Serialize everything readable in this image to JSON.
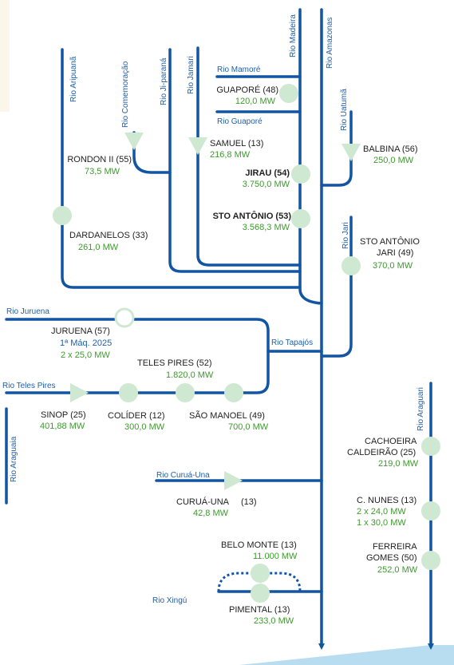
{
  "colors": {
    "river": "#1155a3",
    "plant": "#cfe8d2",
    "name_text": "#222222",
    "power_text": "#3d9a2e",
    "river_label": "#1f5fa8",
    "beige_panel": "#faf7ea",
    "sea": "#b8dcf0"
  },
  "rivers": {
    "madeira": "Rio Madeira",
    "amazonas": "Rio Amazonas",
    "aripuana": "Rio Aripuanã",
    "comemoracao": "Rio Comemoração",
    "jiparana": "Rio Ji-paraná",
    "jamari": "Rio Jamari",
    "mamore": "Rio Mamoré",
    "guapore": "Rio Guaporé",
    "uatuma": "Rio Uatumã",
    "jari": "Rio Jari",
    "juruena": "Rio Juruena",
    "tapajos": "Rio Tapajós",
    "teles_pires": "Rio Teles Pires",
    "araguaia": "Rio Araguaia",
    "araguari": "Rio Araguari",
    "curua_una": "Rio Curuá-Una",
    "xingu": "Rio Xingú"
  },
  "plants": {
    "guapore": {
      "name": "GUAPORÉ (48)",
      "power": "120,0 MW"
    },
    "rondon": {
      "name": "RONDON II (55)",
      "power": "73,5 MW"
    },
    "samuel": {
      "name": "SAMUEL (13)",
      "power": "216,8 MW"
    },
    "jirau": {
      "name": "JIRAU (54)",
      "power": "3.750,0 MW"
    },
    "sto_antonio": {
      "name": "STO ANTÔNIO (53)",
      "power": "3.568,3 MW"
    },
    "dardanelos": {
      "name": "DARDANELOS (33)",
      "power": "261,0 MW"
    },
    "balbina": {
      "name": "BALBINA (56)",
      "power": "250,0 MW"
    },
    "sto_antonio_jari": {
      "name_1": "STO ANTÔNIO",
      "name_2": "JARI (49)",
      "power": "370,0 MW"
    },
    "juruena": {
      "name": "JURUENA (57)",
      "note": "1ª Máq. 2025",
      "power": "2 x 25,0 MW"
    },
    "teles_pires": {
      "name": "TELES PIRES (52)",
      "power": "1.820,0 MW"
    },
    "sinop": {
      "name": "SINOP (25)",
      "power": "401,88 MW"
    },
    "colider": {
      "name": "COLÍDER (12)",
      "power": "300,0 MW"
    },
    "sao_manoel": {
      "name": "SÃO MANOEL (49)",
      "power": "700,0 MW"
    },
    "cachoeira": {
      "name_1": "CACHOEIRA",
      "name_2": "CALDEIRÃO (25)",
      "power": "219,0 MW"
    },
    "curua_una": {
      "name": "CURUÁ-UNA",
      "num": "(13)",
      "power": "42,8 MW"
    },
    "c_nunes": {
      "name": "C. NUNES (13)",
      "power_1": "2 x 24,0 MW",
      "power_2": "1 x 30,0 MW"
    },
    "ferreira_gomes": {
      "name_1": "FERREIRA",
      "name_2": "GOMES (50)",
      "power": "252,0 MW"
    },
    "belo_monte": {
      "name": "BELO MONTE (13)",
      "power": "11.000 MW"
    },
    "pimental": {
      "name": "PIMENTAL (13)",
      "power": "233,0 MW"
    }
  }
}
